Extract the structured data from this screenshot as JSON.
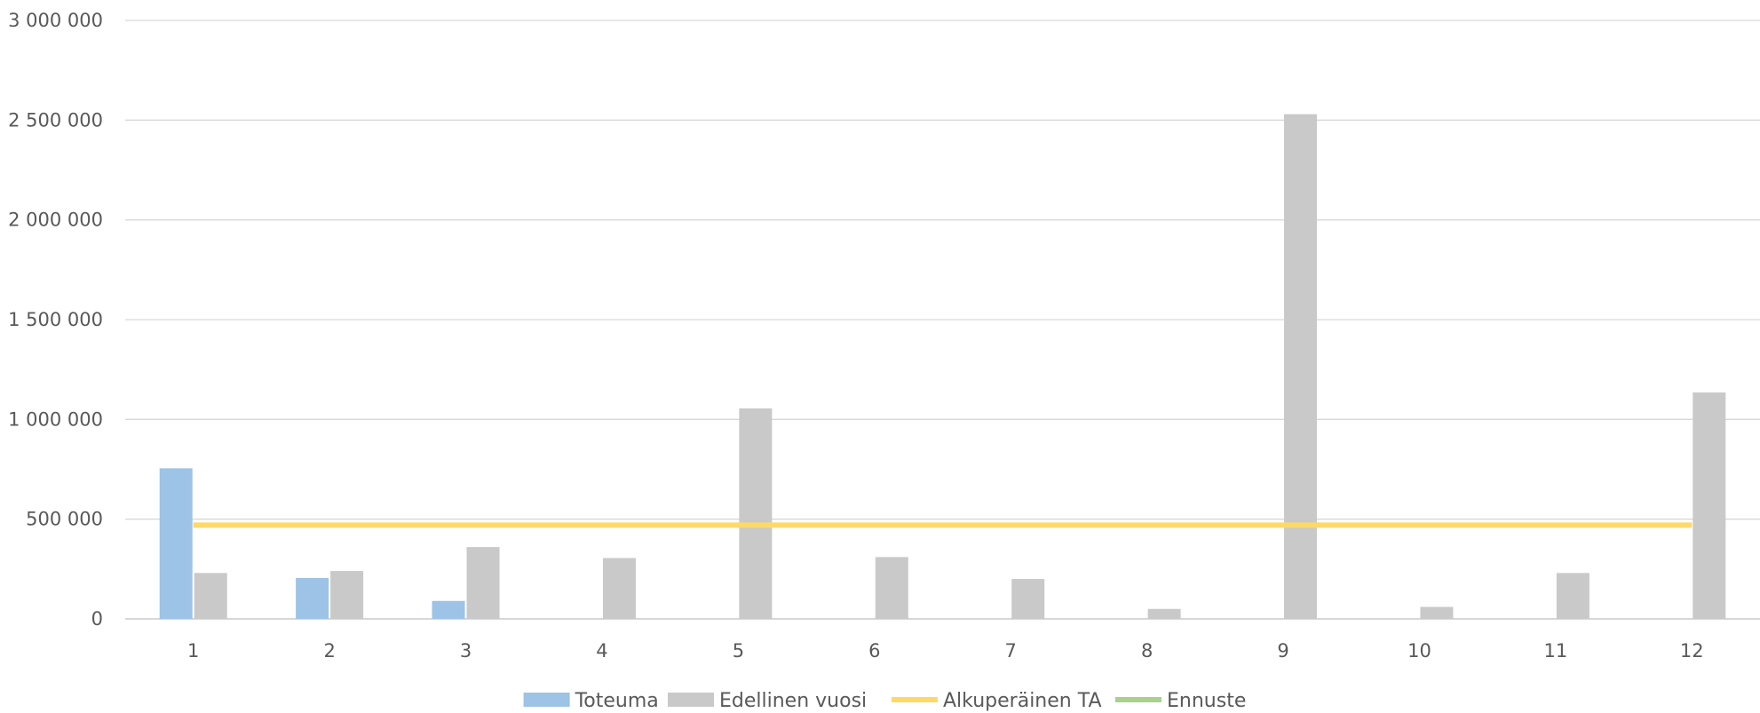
{
  "chart_data": {
    "type": "bar",
    "categories": [
      "1",
      "2",
      "3",
      "4",
      "5",
      "6",
      "7",
      "8",
      "9",
      "10",
      "11",
      "12"
    ],
    "ylim": [
      0,
      3000000
    ],
    "y_ticks": [
      0,
      500000,
      1000000,
      1500000,
      2000000,
      2500000,
      3000000
    ],
    "y_tick_labels": [
      "0",
      "500 000",
      "1 000 000",
      "1 500 000",
      "2 000 000",
      "2 500 000",
      "3 000 000"
    ],
    "grid": true,
    "legend_position": "bottom",
    "series": [
      {
        "name": "Toteuma",
        "kind": "bar",
        "color": "#9dc3e6",
        "values": [
          755000,
          205000,
          90000,
          null,
          null,
          null,
          null,
          null,
          null,
          null,
          null,
          null
        ]
      },
      {
        "name": "Edellinen vuosi",
        "kind": "bar",
        "color": "#c9c9c9",
        "values": [
          230000,
          240000,
          360000,
          305000,
          1055000,
          310000,
          200000,
          50000,
          2530000,
          60000,
          230000,
          1135000
        ]
      },
      {
        "name": "Alkuperäinen TA",
        "kind": "line",
        "color": "#ffd966",
        "values": [
          470000,
          470000,
          470000,
          470000,
          470000,
          470000,
          470000,
          470000,
          470000,
          470000,
          470000,
          470000
        ]
      },
      {
        "name": "Ennuste",
        "kind": "line",
        "color": "#a9d18e",
        "values": [
          null,
          null,
          null,
          null,
          null,
          null,
          null,
          null,
          null,
          null,
          null,
          null
        ]
      }
    ]
  }
}
